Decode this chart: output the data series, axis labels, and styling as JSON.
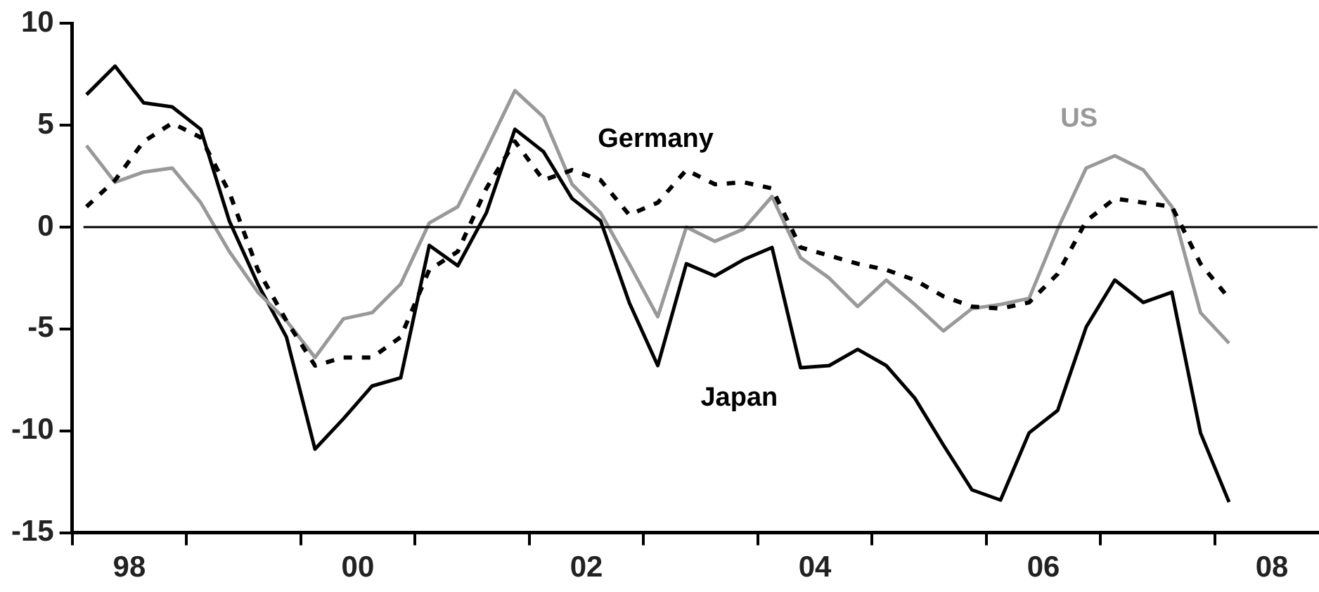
{
  "chart_data": {
    "type": "line",
    "x": [
      1997.625,
      1997.875,
      1998.125,
      1998.375,
      1998.625,
      1998.875,
      1999.125,
      1999.375,
      1999.625,
      1999.875,
      2000.125,
      2000.375,
      2000.625,
      2000.875,
      2001.125,
      2001.375,
      2001.625,
      2001.875,
      2002.125,
      2002.375,
      2002.625,
      2002.875,
      2003.125,
      2003.375,
      2003.625,
      2003.875,
      2004.125,
      2004.375,
      2004.625,
      2004.875,
      2005.125,
      2005.375,
      2005.625,
      2005.875,
      2006.125,
      2006.375,
      2006.625,
      2006.875,
      2007.125,
      2007.375,
      2007.625
    ],
    "series": [
      {
        "name": "Germany",
        "color": "#000000",
        "line_style": "dashed",
        "values": [
          1.0,
          2.3,
          4.2,
          5.1,
          4.4,
          1.7,
          -2.1,
          -4.6,
          -6.8,
          -6.4,
          -6.4,
          -5.4,
          -2.1,
          -1.2,
          1.9,
          4.2,
          2.3,
          2.8,
          2.3,
          0.6,
          1.2,
          2.8,
          2.1,
          2.2,
          1.9,
          -1.0,
          -1.4,
          -1.8,
          -2.1,
          -2.6,
          -3.4,
          -3.9,
          -4.0,
          -3.7,
          -2.3,
          0.3,
          1.4,
          1.2,
          1.0,
          -1.8,
          -3.5
        ]
      },
      {
        "name": "US",
        "color": "#999999",
        "values": [
          4.0,
          2.2,
          2.7,
          2.9,
          1.2,
          -1.2,
          -3.2,
          -4.6,
          -6.4,
          -4.5,
          -4.2,
          -2.8,
          0.2,
          1.0,
          3.8,
          6.7,
          5.4,
          2.1,
          0.7,
          -1.8,
          -4.4,
          0.0,
          -0.7,
          -0.1,
          1.5,
          -1.5,
          -2.5,
          -3.9,
          -2.6,
          -3.8,
          -5.1,
          -4.0,
          -3.8,
          -3.5,
          -0.1,
          2.9,
          3.5,
          2.8,
          1.0,
          -4.2,
          -5.7
        ]
      },
      {
        "name": "Japan",
        "color": "#000000",
        "values": [
          6.5,
          7.9,
          6.1,
          5.9,
          4.8,
          0.3,
          -2.8,
          -5.4,
          -10.9,
          -9.4,
          -7.8,
          -7.4,
          -0.9,
          -1.9,
          0.7,
          4.8,
          3.7,
          1.4,
          0.3,
          -3.7,
          -6.8,
          -1.8,
          -2.4,
          -1.6,
          -1.0,
          -6.9,
          -6.8,
          -6.0,
          -6.8,
          -8.4,
          -10.7,
          -12.9,
          -13.4,
          -10.1,
          -9.0,
          -4.9,
          -2.6,
          -3.7,
          -3.2,
          -10.1,
          -13.5
        ]
      }
    ],
    "xlim": [
      1997.5,
      2008.4
    ],
    "xticks": [
      {
        "value": 1997.5,
        "label": null
      },
      {
        "value": 1998,
        "label": "98"
      },
      {
        "value": 1998.5,
        "label": null
      },
      {
        "value": 1999.5,
        "label": null
      },
      {
        "value": 2000,
        "label": "00"
      },
      {
        "value": 2000.5,
        "label": null
      },
      {
        "value": 2001.5,
        "label": null
      },
      {
        "value": 2002,
        "label": "02"
      },
      {
        "value": 2002.5,
        "label": null
      },
      {
        "value": 2003.5,
        "label": null
      },
      {
        "value": 2004,
        "label": "04"
      },
      {
        "value": 2004.5,
        "label": null
      },
      {
        "value": 2005.5,
        "label": null
      },
      {
        "value": 2006,
        "label": "06"
      },
      {
        "value": 2006.5,
        "label": null
      },
      {
        "value": 2007.5,
        "label": null
      },
      {
        "value": 2008,
        "label": "08"
      }
    ],
    "ylim": [
      -15,
      10
    ],
    "yticks": [
      -15,
      -10,
      -5,
      0,
      5,
      10
    ],
    "ref_lines": [
      {
        "axis": "y",
        "value": 0,
        "color": "#000000"
      }
    ],
    "grid": false,
    "legend": false
  }
}
